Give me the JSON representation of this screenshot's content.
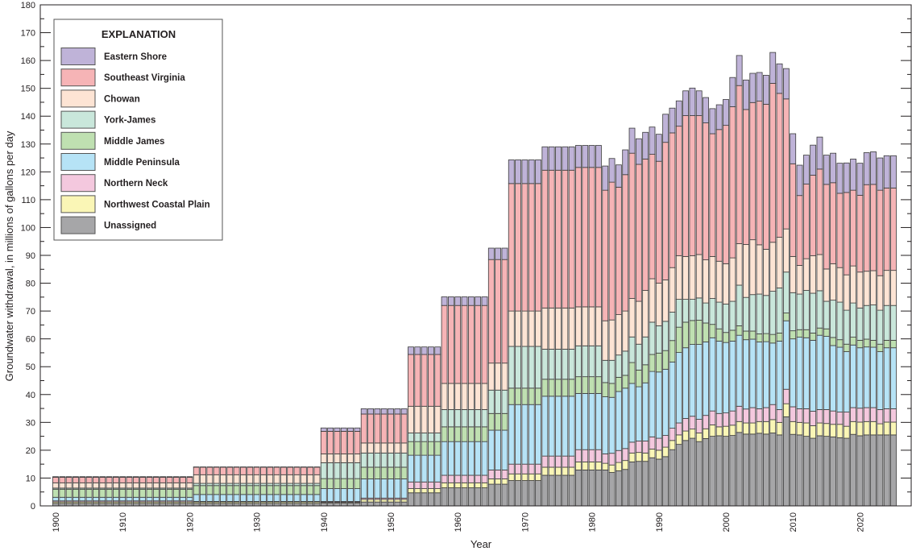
{
  "chart_data": {
    "type": "bar",
    "stacked": true,
    "xlabel": "Year",
    "ylabel": "Groundwater withdrawal, in millions of gallons per day",
    "ylim": [
      0,
      180
    ],
    "xlim": [
      1900,
      2025
    ],
    "yticks": [
      0,
      10,
      20,
      30,
      40,
      50,
      60,
      70,
      80,
      90,
      100,
      110,
      120,
      130,
      140,
      150,
      160,
      170,
      180
    ],
    "xticks": [
      1900,
      1910,
      1920,
      1930,
      1940,
      1950,
      1960,
      1970,
      1980,
      1990,
      2000,
      2010,
      2020
    ],
    "grid": false,
    "legend": {
      "title": "EXPLANATION",
      "placement": "top-left",
      "order": [
        "Eastern Shore",
        "Southeast Virginia",
        "Chowan",
        "York-James",
        "Middle James",
        "Middle Peninsula",
        "Northern Neck",
        "Northwest Coastal Plain",
        "Unassigned"
      ]
    },
    "series": [
      {
        "name": "Unassigned",
        "color": "#a6a6a8"
      },
      {
        "name": "Northwest Coastal Plain",
        "color": "#faf6b6"
      },
      {
        "name": "Northern Neck",
        "color": "#f4c8de"
      },
      {
        "name": "Middle Peninsula",
        "color": "#b6e3f6"
      },
      {
        "name": "Middle James",
        "color": "#bfe0b1"
      },
      {
        "name": "York-James",
        "color": "#c9e7db"
      },
      {
        "name": "Chowan",
        "color": "#fde4d4"
      },
      {
        "name": "Southeast Virginia",
        "color": "#f6b4b6"
      },
      {
        "name": "Eastern Shore",
        "color": "#bfb3d8"
      }
    ],
    "records": [
      {
        "start": 1900,
        "end": 1920,
        "values": [
          0.9,
          0.5,
          0.4,
          1.3,
          2.9,
          0.4,
          1.9,
          2.0,
          0.2
        ]
      },
      {
        "start": 1921,
        "end": 1939,
        "values": [
          0.9,
          0.5,
          0.2,
          2.5,
          3.2,
          0.8,
          3.1,
          2.7,
          0.1
        ]
      },
      {
        "start": 1940,
        "end": 1945,
        "values": [
          1.0,
          0.3,
          0.3,
          4.6,
          3.6,
          5.7,
          3.2,
          8.1,
          1.2
        ]
      },
      {
        "start": 1946,
        "end": 1952,
        "values": [
          1.4,
          0.9,
          0.5,
          6.9,
          4.2,
          5.1,
          3.6,
          10.4,
          1.9
        ]
      },
      {
        "start": 1953,
        "end": 1957,
        "values": [
          4.7,
          1.5,
          2.4,
          9.6,
          4.9,
          3.1,
          9.6,
          18.6,
          2.7
        ]
      },
      {
        "start": 1958,
        "end": 1964,
        "values": [
          6.5,
          1.8,
          2.7,
          12.1,
          5.3,
          6.2,
          9.4,
          28.0,
          3.1
        ]
      },
      {
        "start": 1965,
        "end": 1967,
        "values": [
          7.8,
          1.9,
          3.2,
          14.3,
          6.0,
          8.4,
          9.7,
          37.2,
          4.1
        ]
      },
      {
        "start": 1968,
        "end": 1972,
        "values": [
          9.1,
          2.4,
          3.5,
          21.4,
          5.9,
          15.0,
          12.7,
          45.8,
          8.5
        ]
      },
      {
        "start": 1973,
        "end": 1977,
        "values": [
          11.0,
          2.9,
          4.0,
          21.5,
          6.1,
          10.8,
          14.8,
          49.5,
          8.4
        ]
      },
      {
        "start": 1978,
        "end": 1981,
        "values": [
          12.9,
          2.9,
          4.4,
          20.2,
          6.0,
          11.1,
          14.0,
          50.1,
          7.9
        ]
      },
      {
        "start": 1982,
        "end": 1982,
        "values": [
          12.9,
          2.4,
          3.4,
          20.5,
          5.1,
          8.0,
          14.2,
          46.9,
          8.7
        ]
      },
      {
        "start": 1983,
        "end": 1983,
        "values": [
          12.0,
          2.7,
          4.2,
          20.1,
          5.0,
          8.3,
          14.5,
          49.5,
          8.5
        ]
      },
      {
        "start": 1984,
        "end": 1984,
        "values": [
          12.6,
          3.0,
          4.3,
          21.2,
          5.1,
          8.0,
          14.5,
          45.8,
          8.0
        ]
      },
      {
        "start": 1985,
        "end": 1985,
        "values": [
          13.1,
          3.2,
          4.3,
          21.7,
          4.6,
          8.7,
          14.4,
          49.0,
          8.9
        ]
      },
      {
        "start": 1986,
        "end": 1986,
        "values": [
          15.8,
          3.2,
          3.9,
          21.1,
          7.5,
          9.2,
          13.8,
          52.2,
          9.0
        ]
      },
      {
        "start": 1987,
        "end": 1987,
        "values": [
          16.0,
          3.2,
          4.1,
          19.5,
          6.0,
          9.3,
          15.4,
          49.2,
          9.2
        ]
      },
      {
        "start": 1988,
        "end": 1988,
        "values": [
          16.0,
          3.0,
          4.3,
          20.9,
          6.5,
          10.0,
          16.7,
          47.2,
          9.6
        ]
      },
      {
        "start": 1989,
        "end": 1989,
        "values": [
          17.3,
          3.1,
          4.4,
          23.5,
          6.1,
          11.6,
          15.6,
          44.7,
          9.8
        ]
      },
      {
        "start": 1990,
        "end": 1990,
        "values": [
          16.8,
          3.2,
          4.3,
          23.8,
          6.8,
          9.8,
          15.3,
          43.8,
          9.7
        ]
      },
      {
        "start": 1991,
        "end": 1991,
        "values": [
          17.7,
          3.4,
          4.2,
          23.8,
          6.7,
          10.5,
          14.9,
          49.4,
          10.1
        ]
      },
      {
        "start": 1992,
        "end": 1992,
        "values": [
          20.2,
          3.3,
          4.4,
          23.8,
          7.7,
          10.2,
          16.0,
          48.4,
          8.9
        ]
      },
      {
        "start": 1993,
        "end": 1993,
        "values": [
          22.1,
          3.4,
          4.3,
          25.3,
          9.1,
          10.0,
          15.7,
          46.5,
          9.1
        ]
      },
      {
        "start": 1994,
        "end": 1994,
        "values": [
          23.5,
          3.4,
          4.5,
          25.4,
          9.2,
          8.2,
          15.4,
          50.6,
          8.9
        ]
      },
      {
        "start": 1995,
        "end": 1995,
        "values": [
          24.3,
          3.3,
          4.6,
          25.8,
          8.6,
          7.6,
          15.7,
          50.3,
          9.9
        ]
      },
      {
        "start": 1996,
        "end": 1996,
        "values": [
          23.1,
          3.1,
          4.9,
          26.9,
          8.7,
          8.0,
          15.6,
          49.9,
          8.9
        ]
      },
      {
        "start": 1997,
        "end": 1997,
        "values": [
          24.2,
          3.5,
          4.8,
          26.4,
          6.8,
          7.2,
          15.5,
          49.2,
          9.1
        ]
      },
      {
        "start": 1998,
        "end": 1998,
        "values": [
          25.0,
          4.1,
          5.0,
          26.3,
          4.8,
          9.3,
          15.1,
          44.1,
          9.0
        ]
      },
      {
        "start": 1999,
        "end": 1999,
        "values": [
          25.2,
          3.2,
          4.8,
          26.0,
          4.4,
          9.6,
          14.7,
          47.3,
          8.9
        ]
      },
      {
        "start": 2000,
        "end": 2000,
        "values": [
          25.0,
          3.6,
          4.8,
          25.3,
          3.6,
          10.2,
          14.5,
          49.7,
          9.3
        ]
      },
      {
        "start": 2001,
        "end": 2001,
        "values": [
          25.3,
          3.7,
          5.1,
          25.1,
          3.9,
          10.4,
          15.6,
          54.3,
          10.5
        ]
      },
      {
        "start": 2002,
        "end": 2002,
        "values": [
          26.4,
          3.9,
          5.5,
          25.5,
          3.4,
          14.6,
          14.9,
          56.8,
          10.8
        ]
      },
      {
        "start": 2003,
        "end": 2003,
        "values": [
          25.8,
          4.0,
          5.0,
          24.9,
          3.1,
          12.1,
          19.0,
          48.5,
          10.6
        ]
      },
      {
        "start": 2004,
        "end": 2004,
        "values": [
          25.8,
          4.0,
          5.5,
          24.6,
          2.9,
          13.1,
          19.7,
          49.3,
          10.5
        ]
      },
      {
        "start": 2005,
        "end": 2005,
        "values": [
          26.1,
          4.2,
          4.6,
          24.0,
          2.9,
          14.3,
          17.7,
          51.6,
          10.3
        ]
      },
      {
        "start": 2006,
        "end": 2006,
        "values": [
          25.8,
          4.5,
          5.0,
          23.7,
          2.9,
          13.7,
          16.6,
          52.1,
          10.4
        ]
      },
      {
        "start": 2007,
        "end": 2007,
        "values": [
          26.2,
          4.8,
          5.4,
          22.1,
          3.1,
          15.5,
          17.6,
          57.1,
          11.1
        ]
      },
      {
        "start": 2008,
        "end": 2008,
        "values": [
          25.5,
          4.5,
          4.6,
          24.6,
          2.9,
          16.2,
          18.2,
          51.7,
          10.6
        ]
      },
      {
        "start": 2009,
        "end": 2009,
        "values": [
          32.0,
          4.7,
          5.2,
          24.6,
          2.8,
          14.7,
          15.5,
          46.7,
          10.9
        ]
      },
      {
        "start": 2010,
        "end": 2010,
        "values": [
          25.7,
          4.6,
          5.3,
          24.4,
          2.9,
          13.7,
          13.0,
          33.3,
          10.8
        ]
      },
      {
        "start": 2011,
        "end": 2011,
        "values": [
          25.5,
          4.5,
          4.9,
          25.7,
          2.7,
          12.8,
          10.3,
          25.1,
          10.9
        ]
      },
      {
        "start": 2012,
        "end": 2012,
        "values": [
          25.0,
          4.8,
          5.1,
          25.5,
          2.9,
          14.1,
          11.4,
          26.8,
          10.4
        ]
      },
      {
        "start": 2013,
        "end": 2013,
        "values": [
          24.3,
          4.5,
          5.2,
          25.5,
          2.6,
          14.3,
          13.5,
          28.9,
          10.8
        ]
      },
      {
        "start": 2014,
        "end": 2014,
        "values": [
          25.2,
          4.6,
          4.8,
          26.7,
          2.6,
          13.4,
          13.0,
          30.7,
          11.5
        ]
      },
      {
        "start": 2015,
        "end": 2015,
        "values": [
          25.0,
          4.6,
          5.0,
          26.3,
          2.7,
          9.9,
          11.6,
          30.4,
          10.5
        ]
      },
      {
        "start": 2016,
        "end": 2016,
        "values": [
          24.8,
          4.5,
          4.8,
          23.5,
          2.9,
          13.4,
          13.1,
          29.1,
          10.6
        ]
      },
      {
        "start": 2017,
        "end": 2017,
        "values": [
          24.5,
          4.8,
          4.4,
          23.3,
          2.7,
          13.5,
          12.4,
          26.7,
          10.8
        ]
      },
      {
        "start": 2018,
        "end": 2018,
        "values": [
          24.3,
          4.3,
          5.1,
          21.7,
          2.7,
          12.2,
          12.7,
          29.6,
          10.6
        ]
      },
      {
        "start": 2019,
        "end": 2019,
        "values": [
          25.7,
          4.6,
          5.0,
          22.5,
          2.8,
          12.3,
          13.3,
          27.2,
          11.2
        ]
      },
      {
        "start": 2020,
        "end": 2020,
        "values": [
          25.2,
          4.9,
          5.0,
          21.7,
          2.7,
          11.6,
          12.9,
          27.6,
          11.5
        ]
      },
      {
        "start": 2021,
        "end": 2021,
        "values": [
          25.5,
          4.8,
          5.0,
          21.8,
          2.8,
          12.1,
          12.3,
          31.1,
          11.5
        ]
      },
      {
        "start": 2022,
        "end": 2022,
        "values": [
          25.5,
          4.8,
          5.0,
          21.7,
          2.5,
          12.7,
          12.3,
          31.0,
          11.7
        ]
      },
      {
        "start": 2023,
        "end": 2023,
        "values": [
          25.5,
          4.0,
          5.1,
          20.8,
          2.7,
          12.2,
          12.4,
          30.7,
          11.6
        ]
      },
      {
        "start": 2024,
        "end": 2024,
        "values": [
          25.5,
          4.6,
          4.8,
          21.9,
          2.7,
          12.5,
          12.6,
          29.6,
          11.6
        ]
      },
      {
        "start": 2025,
        "end": 2025,
        "values": [
          25.5,
          4.6,
          4.8,
          21.9,
          2.7,
          12.5,
          12.6,
          29.6,
          11.6
        ]
      }
    ]
  }
}
